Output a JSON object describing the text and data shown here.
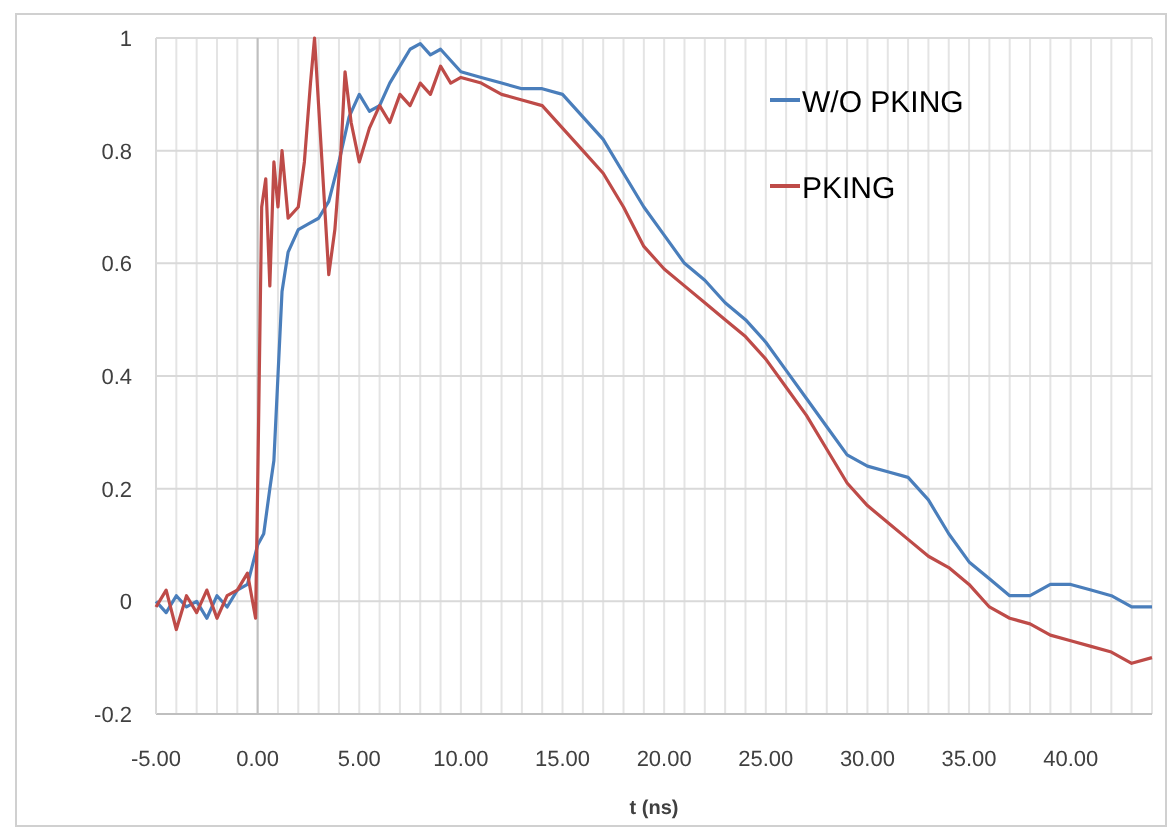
{
  "chart_data": {
    "type": "line",
    "xlabel": "t (ns)",
    "xlim": [
      -5,
      44
    ],
    "ylim": [
      -0.2,
      1
    ],
    "xticks": [
      {
        "value": -5,
        "label": "-5.00"
      },
      {
        "value": -4,
        "label": null
      },
      {
        "value": -3,
        "label": null
      },
      {
        "value": -2,
        "label": null
      },
      {
        "value": -1,
        "label": null
      },
      {
        "value": 0,
        "label": "0.00"
      },
      {
        "value": 1,
        "label": null
      },
      {
        "value": 2,
        "label": null
      },
      {
        "value": 3,
        "label": null
      },
      {
        "value": 4,
        "label": null
      },
      {
        "value": 5,
        "label": "5.00"
      },
      {
        "value": 6,
        "label": null
      },
      {
        "value": 7,
        "label": null
      },
      {
        "value": 8,
        "label": null
      },
      {
        "value": 9,
        "label": null
      },
      {
        "value": 10,
        "label": "10.00"
      },
      {
        "value": 11,
        "label": null
      },
      {
        "value": 12,
        "label": null
      },
      {
        "value": 13,
        "label": null
      },
      {
        "value": 14,
        "label": null
      },
      {
        "value": 15,
        "label": "15.00"
      },
      {
        "value": 16,
        "label": null
      },
      {
        "value": 17,
        "label": null
      },
      {
        "value": 18,
        "label": null
      },
      {
        "value": 19,
        "label": null
      },
      {
        "value": 20,
        "label": "20.00"
      },
      {
        "value": 21,
        "label": null
      },
      {
        "value": 22,
        "label": null
      },
      {
        "value": 23,
        "label": null
      },
      {
        "value": 24,
        "label": null
      },
      {
        "value": 25,
        "label": "25.00"
      },
      {
        "value": 26,
        "label": null
      },
      {
        "value": 27,
        "label": null
      },
      {
        "value": 28,
        "label": null
      },
      {
        "value": 29,
        "label": null
      },
      {
        "value": 30,
        "label": "30.00"
      },
      {
        "value": 31,
        "label": null
      },
      {
        "value": 32,
        "label": null
      },
      {
        "value": 33,
        "label": null
      },
      {
        "value": 34,
        "label": null
      },
      {
        "value": 35,
        "label": "35.00"
      },
      {
        "value": 36,
        "label": null
      },
      {
        "value": 37,
        "label": null
      },
      {
        "value": 38,
        "label": null
      },
      {
        "value": 39,
        "label": null
      },
      {
        "value": 40,
        "label": "40.00"
      },
      {
        "value": 41,
        "label": null
      },
      {
        "value": 42,
        "label": null
      },
      {
        "value": 43,
        "label": null
      },
      {
        "value": 44,
        "label": null
      }
    ],
    "yticks": [
      -0.2,
      0,
      0.2,
      0.4,
      0.6,
      0.8,
      1
    ],
    "grid": true,
    "legend": "top right",
    "series": [
      {
        "name": "W/O PKING",
        "color": "#4a7ebb",
        "x": [
          -5,
          -4.5,
          -4,
          -3.5,
          -3,
          -2.5,
          -2,
          -1.5,
          -1,
          -0.5,
          0,
          0.3,
          0.6,
          0.8,
          1,
          1.2,
          1.5,
          2,
          2.5,
          3,
          3.5,
          4,
          4.5,
          5,
          5.5,
          6,
          6.5,
          7,
          7.5,
          8,
          8.5,
          9,
          9.5,
          10,
          11,
          12,
          13,
          14,
          15,
          16,
          17,
          18,
          19,
          20,
          21,
          22,
          23,
          24,
          25,
          26,
          27,
          28,
          29,
          30,
          31,
          32,
          33,
          34,
          35,
          36,
          37,
          38,
          39,
          40,
          41,
          42,
          43,
          44
        ],
        "values": [
          0,
          -0.02,
          0.01,
          -0.01,
          0,
          -0.03,
          0.01,
          -0.01,
          0.02,
          0.03,
          0.1,
          0.12,
          0.2,
          0.25,
          0.4,
          0.55,
          0.62,
          0.66,
          0.67,
          0.68,
          0.71,
          0.78,
          0.86,
          0.9,
          0.87,
          0.88,
          0.92,
          0.95,
          0.98,
          0.99,
          0.97,
          0.98,
          0.96,
          0.94,
          0.93,
          0.92,
          0.91,
          0.91,
          0.9,
          0.86,
          0.82,
          0.76,
          0.7,
          0.65,
          0.6,
          0.57,
          0.53,
          0.5,
          0.46,
          0.41,
          0.36,
          0.31,
          0.26,
          0.24,
          0.23,
          0.22,
          0.18,
          0.12,
          0.07,
          0.04,
          0.01,
          0.01,
          0.03,
          0.03,
          0.02,
          0.01,
          -0.01,
          -0.01
        ]
      },
      {
        "name": "PKING",
        "color": "#be4b48",
        "x": [
          -5,
          -4.5,
          -4,
          -3.5,
          -3,
          -2.5,
          -2,
          -1.5,
          -1,
          -0.5,
          -0.1,
          0,
          0.2,
          0.4,
          0.6,
          0.8,
          1,
          1.2,
          1.5,
          2,
          2.3,
          2.6,
          2.8,
          3,
          3.3,
          3.5,
          3.8,
          4.1,
          4.3,
          4.6,
          5,
          5.5,
          6,
          6.5,
          7,
          7.5,
          8,
          8.5,
          9,
          9.5,
          10,
          11,
          12,
          13,
          14,
          15,
          16,
          17,
          18,
          19,
          20,
          21,
          22,
          23,
          24,
          25,
          26,
          27,
          28,
          29,
          30,
          31,
          32,
          33,
          34,
          35,
          36,
          37,
          38,
          39,
          40,
          41,
          42,
          43,
          44
        ],
        "values": [
          -0.01,
          0.02,
          -0.05,
          0.01,
          -0.02,
          0.02,
          -0.03,
          0.01,
          0.02,
          0.05,
          -0.03,
          0.2,
          0.7,
          0.75,
          0.56,
          0.78,
          0.7,
          0.8,
          0.68,
          0.7,
          0.78,
          0.92,
          1,
          0.88,
          0.7,
          0.58,
          0.66,
          0.8,
          0.94,
          0.85,
          0.78,
          0.84,
          0.88,
          0.85,
          0.9,
          0.88,
          0.92,
          0.9,
          0.95,
          0.92,
          0.93,
          0.92,
          0.9,
          0.89,
          0.88,
          0.84,
          0.8,
          0.76,
          0.7,
          0.63,
          0.59,
          0.56,
          0.53,
          0.5,
          0.47,
          0.43,
          0.38,
          0.33,
          0.27,
          0.21,
          0.17,
          0.14,
          0.11,
          0.08,
          0.06,
          0.03,
          -0.01,
          -0.03,
          -0.04,
          -0.06,
          -0.07,
          -0.08,
          -0.09,
          -0.11,
          -0.1
        ]
      }
    ]
  }
}
